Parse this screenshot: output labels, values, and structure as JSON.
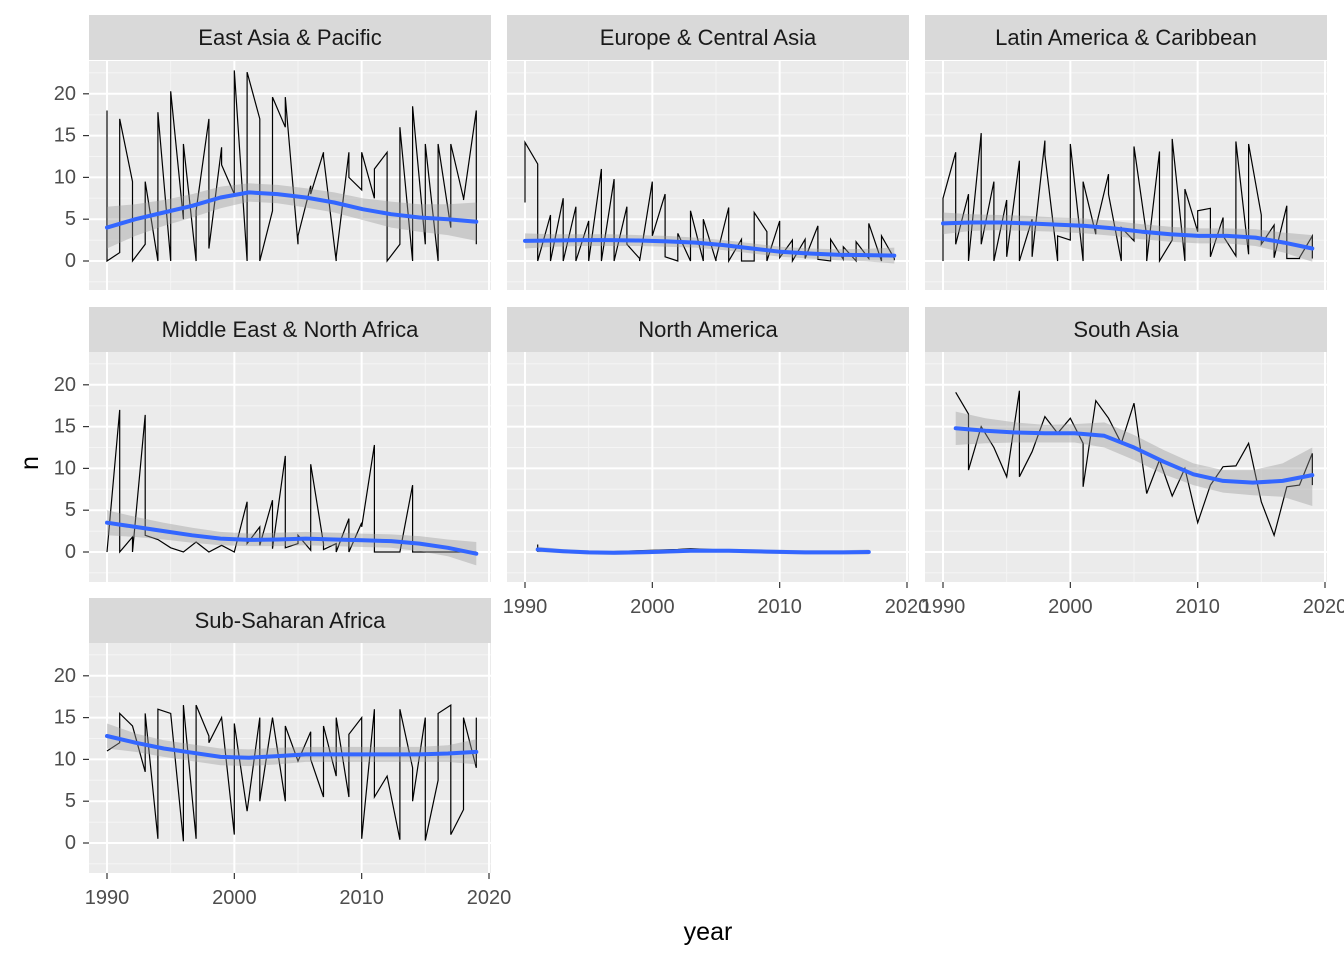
{
  "chart_data": {
    "type": "line",
    "xlabel": "year",
    "ylabel": "n",
    "xlim": [
      1990,
      2020
    ],
    "ylim": [
      0,
      20
    ],
    "x_ticks": [
      1990,
      2000,
      2010,
      2020
    ],
    "y_ticks": [
      0,
      5,
      10,
      15,
      20
    ],
    "grid": true,
    "smooth_color": "#3366FF",
    "panels": [
      {
        "title": "East Asia & Pacific",
        "x": [
          1990,
          1990,
          1991,
          1991,
          1992,
          1992,
          1993,
          1993,
          1994,
          1994,
          1995,
          1995,
          1996,
          1996,
          1997,
          1997,
          1998,
          1998,
          1999,
          1999,
          2000,
          2000,
          2001,
          2001,
          2002,
          2002,
          2003,
          2003,
          2004,
          2004,
          2005,
          2005,
          2006,
          2006,
          2007,
          2007,
          2008,
          2008,
          2009,
          2009,
          2010,
          2010,
          2011,
          2011,
          2012,
          2012,
          2013,
          2013,
          2014,
          2014,
          2015,
          2015,
          2016,
          2016,
          2017,
          2017,
          2018,
          2018,
          2019,
          2019
        ],
        "y": [
          18,
          0,
          1,
          17,
          9.5,
          0,
          2,
          9.5,
          0,
          17.8,
          0,
          20.3,
          5,
          14,
          0,
          6,
          17,
          1.5,
          13.6,
          11.5,
          8,
          22.8,
          0,
          22.6,
          17,
          0,
          6,
          19.6,
          16,
          19.6,
          2,
          3,
          9,
          8,
          13,
          12.5,
          0,
          0.5,
          13,
          10,
          8.5,
          13,
          7.5,
          11,
          13,
          0,
          2,
          16,
          0,
          18.5,
          2,
          14,
          0,
          14,
          4,
          14,
          7.5,
          7.3,
          18,
          2
        ],
        "smooth": [
          4,
          5,
          5.8,
          6.6,
          7.6,
          8.2,
          8,
          7.6,
          7,
          6.2,
          5.6,
          5.2,
          5,
          4.7
        ],
        "band_upper": [
          6.5,
          6.8,
          7.3,
          8,
          8.9,
          9.3,
          9.1,
          8.7,
          8.2,
          7.5,
          7.1,
          6.8,
          6.8,
          7
        ],
        "band_lower": [
          1.5,
          3,
          4.2,
          5.2,
          6.3,
          7.1,
          6.9,
          6.4,
          5.8,
          4.9,
          4,
          3.5,
          3.1,
          2.4
        ]
      },
      {
        "title": "Europe & Central Asia",
        "x": [
          1990,
          1990,
          1991,
          1991,
          1992,
          1992,
          1993,
          1993,
          1994,
          1994,
          1995,
          1995,
          1996,
          1996,
          1997,
          1997,
          1998,
          1998,
          1999,
          1999,
          2000,
          2000,
          2001,
          2001,
          2002,
          2002,
          2003,
          2003,
          2004,
          2004,
          2005,
          2005,
          2006,
          2006,
          2007,
          2007,
          2008,
          2008,
          2009,
          2009,
          2010,
          2010,
          2011,
          2011,
          2012,
          2012,
          2013,
          2013,
          2014,
          2014,
          2015,
          2015,
          2016,
          2016,
          2017,
          2017,
          2018,
          2018,
          2019,
          2019
        ],
        "y": [
          7,
          14.2,
          11.6,
          0,
          5.5,
          0,
          7.5,
          0,
          6.5,
          0,
          4.8,
          0,
          11,
          0,
          9.8,
          0,
          6.5,
          2,
          0.3,
          0,
          9.5,
          3,
          8,
          0.5,
          0,
          3.3,
          0,
          6,
          0,
          5,
          0,
          0.3,
          6.4,
          0,
          2.6,
          0,
          0,
          5.8,
          3.5,
          0,
          4.8,
          0.4,
          2.5,
          0,
          2.6,
          0.3,
          4.2,
          0.2,
          0,
          2.6,
          0.2,
          1.7,
          0,
          2.3,
          0.3,
          4.5,
          0,
          3,
          0.3,
          0.1
        ],
        "smooth": [
          2.4,
          2.45,
          2.5,
          2.5,
          2.45,
          2.35,
          2.2,
          1.9,
          1.5,
          1.1,
          0.9,
          0.75,
          0.7,
          0.65
        ],
        "band_upper": [
          3.3,
          3.2,
          3.2,
          3.2,
          3.1,
          3,
          2.8,
          2.5,
          2.1,
          1.7,
          1.5,
          1.4,
          1.45,
          1.6
        ],
        "band_lower": [
          1.5,
          1.7,
          1.8,
          1.8,
          1.8,
          1.7,
          1.6,
          1.3,
          0.9,
          0.5,
          0.3,
          0.1,
          -0.05,
          -0.3
        ]
      },
      {
        "title": "Latin America & Caribbean",
        "x": [
          1990,
          1990,
          1991,
          1991,
          1992,
          1992,
          1993,
          1993,
          1994,
          1994,
          1995,
          1995,
          1996,
          1996,
          1997,
          1997,
          1998,
          1998,
          1999,
          1999,
          2000,
          2000,
          2001,
          2001,
          2002,
          2002,
          2003,
          2003,
          2004,
          2004,
          2005,
          2005,
          2006,
          2006,
          2007,
          2007,
          2008,
          2008,
          2009,
          2009,
          2010,
          2010,
          2011,
          2011,
          2012,
          2012,
          2013,
          2013,
          2014,
          2014,
          2015,
          2015,
          2016,
          2016,
          2017,
          2017,
          2018,
          2018,
          2019,
          2019
        ],
        "y": [
          0,
          7.5,
          13,
          2,
          8,
          0,
          15.3,
          2,
          9.5,
          0,
          7.3,
          0.5,
          12,
          0,
          5,
          0.5,
          14.4,
          12.7,
          0,
          3,
          2.5,
          14,
          0,
          9.5,
          3.2,
          4,
          10.4,
          8,
          0,
          4,
          2.4,
          13.7,
          3,
          0,
          13.1,
          0,
          2.5,
          14.6,
          0,
          8.6,
          3.5,
          6,
          6.3,
          0.5,
          5.2,
          3,
          0.6,
          14.3,
          0.8,
          14,
          5.5,
          2,
          4.3,
          0.4,
          6.6,
          0.3,
          0.3,
          0.4,
          3,
          0.3
        ],
        "smooth": [
          4.5,
          4.6,
          4.6,
          4.5,
          4.35,
          4.2,
          3.9,
          3.5,
          3.2,
          3,
          3,
          2.8,
          2.2,
          1.5
        ],
        "band_upper": [
          5.8,
          5.6,
          5.5,
          5.4,
          5.2,
          5.1,
          4.8,
          4.4,
          4.1,
          3.9,
          3.9,
          3.8,
          3.4,
          3.1
        ],
        "band_lower": [
          3.2,
          3.6,
          3.7,
          3.6,
          3.5,
          3.3,
          3,
          2.6,
          2.3,
          2.1,
          2.1,
          1.8,
          1,
          -0.1
        ]
      },
      {
        "title": "Middle East & North Africa",
        "x": [
          1990,
          1991,
          1991,
          1992,
          1992,
          1993,
          1993,
          1994,
          1995,
          1996,
          1997,
          1998,
          1999,
          2000,
          2001,
          2001,
          2002,
          2002,
          2003,
          2003,
          2004,
          2004,
          2005,
          2005,
          2006,
          2006,
          2007,
          2007,
          2008,
          2008,
          2009,
          2009,
          2010,
          2010,
          2011,
          2011,
          2012,
          2013,
          2014,
          2014,
          2015,
          2016,
          2017,
          2018,
          2019
        ],
        "y": [
          0,
          17,
          0,
          1.8,
          0,
          16.4,
          2,
          1.5,
          0.5,
          0,
          1.2,
          0,
          0.8,
          0,
          6,
          1,
          3,
          0.8,
          6.2,
          0.4,
          11.5,
          0.5,
          1,
          2,
          0.2,
          10.5,
          1,
          0.3,
          1,
          0,
          4,
          0,
          3.5,
          3,
          12.8,
          0,
          0,
          0,
          8,
          0,
          0,
          0,
          0,
          0,
          0
        ],
        "smooth": [
          3.5,
          3,
          2.5,
          2,
          1.6,
          1.45,
          1.5,
          1.6,
          1.5,
          1.4,
          1.3,
          1,
          0.5,
          -0.2
        ],
        "band_upper": [
          5,
          4.2,
          3.5,
          2.9,
          2.4,
          2.2,
          2.3,
          2.4,
          2.3,
          2.2,
          2.1,
          1.9,
          1.5,
          1.2
        ],
        "band_lower": [
          2,
          1.8,
          1.5,
          1.1,
          0.8,
          0.7,
          0.7,
          0.8,
          0.7,
          0.6,
          0.5,
          0.1,
          -0.5,
          -1.6
        ]
      },
      {
        "title": "North America",
        "x": [
          1991,
          1991,
          1992,
          1996,
          2002,
          2003,
          2008,
          2012,
          2017
        ],
        "y": [
          0.9,
          0.1,
          0.2,
          0,
          0.3,
          0.4,
          0.1,
          0,
          0
        ],
        "smooth": [
          0.3,
          0.1,
          -0.05,
          -0.1,
          0,
          0.15,
          0.15,
          0.05,
          -0.05,
          -0.05,
          0
        ],
        "smooth_x": [
          1991,
          1993,
          1995,
          1997,
          2000,
          2003,
          2006,
          2009,
          2012,
          2015,
          2017
        ],
        "band_upper": [
          0.65,
          0.35,
          0.2,
          0.15,
          0.25,
          0.4,
          0.4,
          0.3,
          0.2,
          0.2,
          0.3
        ],
        "band_lower": [
          -0.05,
          -0.15,
          -0.3,
          -0.35,
          -0.25,
          -0.1,
          -0.1,
          -0.2,
          -0.3,
          -0.3,
          -0.3
        ]
      },
      {
        "title": "South Asia",
        "x": [
          1991,
          1992,
          1992,
          1993,
          1994,
          1995,
          1996,
          1996,
          1997,
          1998,
          1999,
          2000,
          2001,
          2001,
          2002,
          2003,
          2004,
          2005,
          2006,
          2007,
          2008,
          2009,
          2010,
          2011,
          2012,
          2013,
          2014,
          2015,
          2016,
          2017,
          2018,
          2019,
          2019
        ],
        "y": [
          19.1,
          16.5,
          9.8,
          15,
          12.5,
          9,
          19.3,
          9,
          12,
          16.2,
          14.2,
          16,
          13,
          7.8,
          18.1,
          16,
          13,
          17.8,
          7,
          11,
          6.7,
          10,
          3.5,
          8,
          10.2,
          10.3,
          13,
          6,
          2,
          7.8,
          8,
          11.8,
          8
        ],
        "smooth": [
          14.8,
          14.5,
          14.3,
          14.2,
          14.2,
          13.9,
          12.5,
          10.8,
          9.3,
          8.5,
          8.3,
          8.5,
          9.2
        ],
        "band_upper": [
          16.8,
          16,
          15.5,
          15.2,
          15.3,
          15.5,
          14,
          12.2,
          10.6,
          9.8,
          9.8,
          10.6,
          12.5
        ],
        "band_lower": [
          12.8,
          13,
          13.1,
          13.1,
          13.1,
          12.5,
          11,
          9.3,
          8,
          7.1,
          6.8,
          6.6,
          5.5
        ]
      },
      {
        "title": "Sub-Saharan Africa",
        "x": [
          1990,
          1991,
          1991,
          1992,
          1993,
          1993,
          1994,
          1994,
          1995,
          1996,
          1996,
          1997,
          1997,
          1998,
          1998,
          1999,
          2000,
          2000,
          2001,
          2002,
          2002,
          2003,
          2004,
          2004,
          2005,
          2006,
          2006,
          2007,
          2007,
          2008,
          2008,
          2009,
          2009,
          2010,
          2010,
          2011,
          2011,
          2012,
          2013,
          2013,
          2014,
          2014,
          2015,
          2015,
          2016,
          2016,
          2017,
          2017,
          2018,
          2018,
          2019,
          2019
        ],
        "y": [
          11,
          12,
          15.5,
          14,
          8.5,
          15.5,
          0.5,
          16,
          15.5,
          0.2,
          16.5,
          0.5,
          16.5,
          12.8,
          12,
          15,
          1,
          14.3,
          3.8,
          15,
          5,
          15,
          5,
          14,
          9.8,
          13.3,
          10,
          5.5,
          14,
          8,
          15,
          5.5,
          13,
          15,
          0.5,
          16,
          5.5,
          8,
          0.4,
          16,
          9,
          5,
          15,
          0.3,
          7.5,
          15.5,
          16.5,
          1,
          4,
          15,
          9,
          15
        ],
        "smooth": [
          12.8,
          12,
          11.3,
          10.8,
          10.3,
          10.2,
          10.4,
          10.6,
          10.6,
          10.6,
          10.6,
          10.6,
          10.7,
          10.9
        ],
        "band_upper": [
          14.3,
          13.1,
          12.3,
          11.8,
          11.3,
          11.2,
          11.4,
          11.5,
          11.5,
          11.5,
          11.5,
          11.5,
          11.7,
          12.4
        ],
        "band_lower": [
          11.3,
          10.9,
          10.3,
          9.8,
          9.3,
          9.2,
          9.4,
          9.7,
          9.7,
          9.7,
          9.7,
          9.7,
          9.7,
          9.4
        ]
      }
    ]
  }
}
